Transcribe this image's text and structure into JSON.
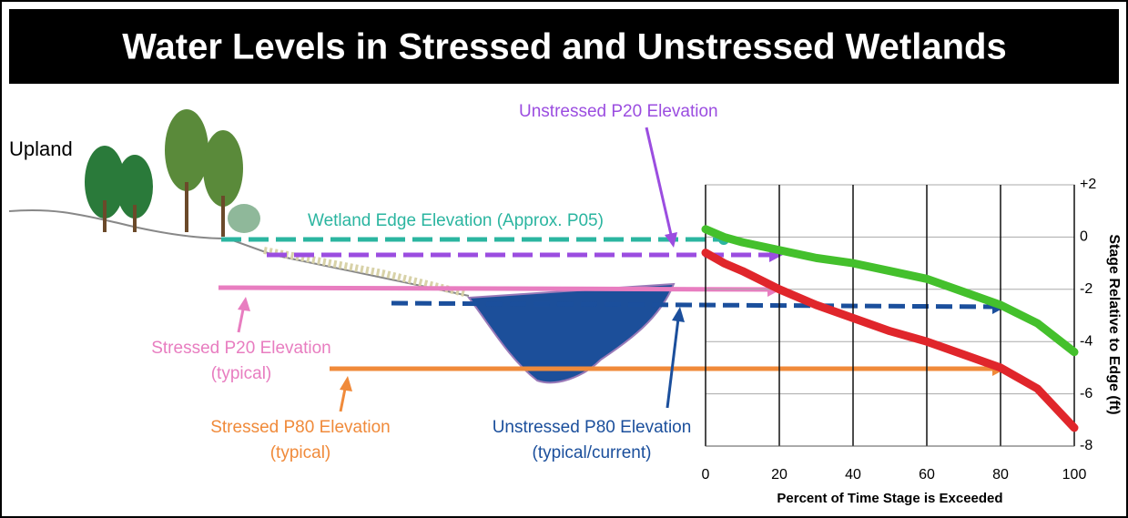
{
  "title": "Water Levels in Stressed and Unstressed Wetlands",
  "upland_label": "Upland",
  "annotations": {
    "unstressed_p20": [
      "Unstressed P20  Elevation"
    ],
    "wetland_edge": [
      "Wetland Edge Elevation (Approx. P05)"
    ],
    "stressed_p20": [
      "Stressed P20 Elevation",
      "(typical)"
    ],
    "stressed_p80": [
      "Stressed P80 Elevation",
      "(typical)"
    ],
    "unstressed_p80": [
      "Unstressed P80 Elevation",
      "(typical/current)"
    ]
  },
  "chart_data": {
    "type": "line",
    "x_label": "Percent of Time Stage is Exceeded",
    "y_label": "Stage Relative to Edge (ft)",
    "xlim": [
      0,
      100
    ],
    "xticks": [
      0,
      20,
      40,
      60,
      80,
      100
    ],
    "ylim": [
      -8,
      2
    ],
    "yticks": [
      {
        "value": 2,
        "label": "+2"
      },
      0,
      -2,
      -4,
      -6,
      -8
    ],
    "grid": true,
    "x": [
      0,
      5,
      10,
      20,
      30,
      40,
      50,
      60,
      70,
      80,
      90,
      100
    ],
    "series": [
      {
        "color": "#44c02c",
        "values": [
          0.3,
          0,
          -0.2,
          -0.5,
          -0.8,
          -1.0,
          -1.3,
          -1.6,
          -2.1,
          -2.6,
          -3.3,
          -4.4
        ]
      },
      {
        "color": "#e0262b",
        "values": [
          -0.6,
          -1.0,
          -1.3,
          -2.0,
          -2.6,
          -3.1,
          -3.6,
          -4.0,
          -4.5,
          -5.0,
          -5.8,
          -7.3
        ]
      }
    ]
  }
}
